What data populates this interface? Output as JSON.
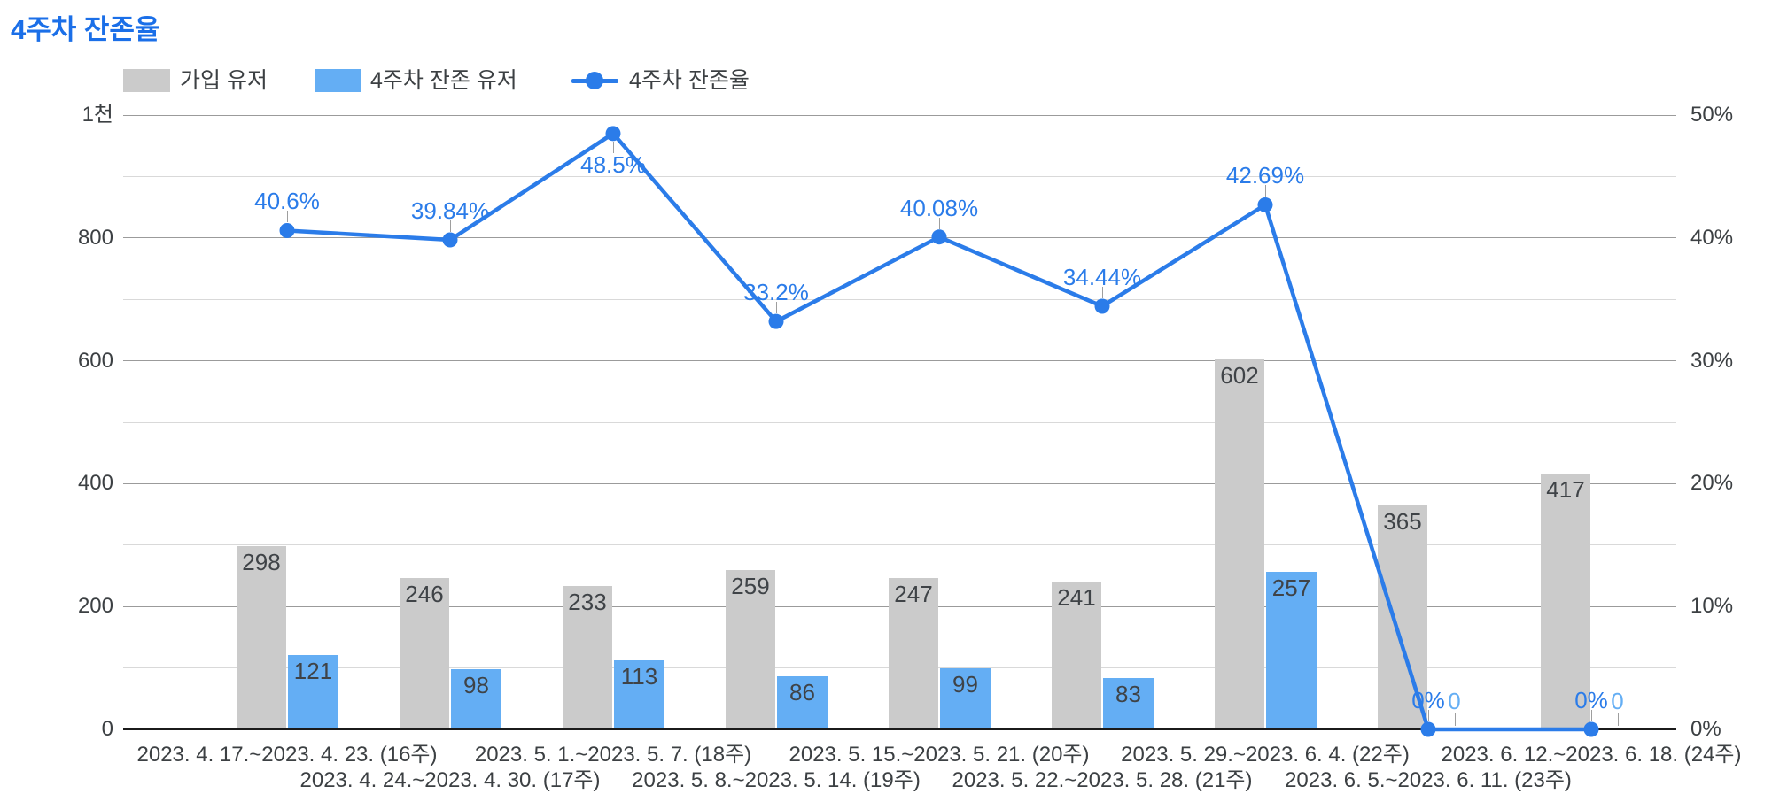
{
  "title": "4주차 잔존율",
  "colors": {
    "title": "#1b6fe8",
    "signup_bar": "#cbcbcb",
    "retained_bar": "#64aef4",
    "rate_line": "#2b7ce9",
    "bar_label": "#3f4347",
    "axis_label": "#3c4043",
    "gridline_major": "#9b9b9b",
    "gridline_minor": "#d9d9d9",
    "baseline": "#1b1b1b"
  },
  "legend": {
    "items": [
      {
        "label": "가입 유저",
        "marker": "swatch",
        "color": "#cbcbcb"
      },
      {
        "label": "4주차 잔존 유저",
        "marker": "swatch",
        "color": "#64aef4"
      },
      {
        "label": "4주차 잔존율",
        "marker": "line-dot",
        "color": "#2b7ce9"
      }
    ]
  },
  "chart_data": {
    "type": "combo-bar-line",
    "title": "4주차 잔존율",
    "categories": [
      "2023. 4. 17.~2023. 4. 23. (16주)",
      "2023. 4. 24.~2023. 4. 30. (17주)",
      "2023. 5. 1.~2023. 5. 7. (18주)",
      "2023. 5. 8.~2023. 5. 14. (19주)",
      "2023. 5. 15.~2023. 5. 21. (20주)",
      "2023. 5. 22.~2023. 5. 28. (21주)",
      "2023. 5. 29.~2023. 6. 4. (22주)",
      "2023. 6. 5.~2023. 6. 11. (23주)",
      "2023. 6. 12.~2023. 6. 18. (24주)"
    ],
    "series": [
      {
        "name": "가입 유저",
        "type": "bar",
        "axis": "left",
        "color": "#cbcbcb",
        "values": [
          298,
          246,
          233,
          259,
          247,
          241,
          602,
          365,
          417
        ],
        "value_labels": [
          "298",
          "246",
          "233",
          "259",
          "247",
          "241",
          "602",
          "365",
          "417"
        ]
      },
      {
        "name": "4주차 잔존 유저",
        "type": "bar",
        "axis": "left",
        "color": "#64aef4",
        "values": [
          121,
          98,
          113,
          86,
          99,
          83,
          257,
          0,
          0
        ],
        "value_labels": [
          "121",
          "98",
          "113",
          "86",
          "99",
          "83",
          "257",
          "0",
          "0"
        ]
      },
      {
        "name": "4주차 잔존율",
        "type": "line",
        "axis": "right",
        "color": "#2b7ce9",
        "values": [
          40.6,
          39.84,
          48.5,
          33.2,
          40.08,
          34.44,
          42.69,
          0,
          0
        ],
        "value_labels": [
          "40.6%",
          "39.84%",
          "48.5%",
          "33.2%",
          "40.08%",
          "34.44%",
          "42.69%",
          "0%",
          "0%"
        ],
        "label_positions": [
          "above",
          "above",
          "below",
          "above",
          "above",
          "above",
          "above",
          "above",
          "above"
        ]
      }
    ],
    "left_axis": {
      "min": 0,
      "max": 1000,
      "minor_step": 100,
      "ticks": [
        {
          "value": 0,
          "label": "0"
        },
        {
          "value": 200,
          "label": "200"
        },
        {
          "value": 400,
          "label": "400"
        },
        {
          "value": 600,
          "label": "600"
        },
        {
          "value": 800,
          "label": "800"
        },
        {
          "value": 1000,
          "label": "1천"
        }
      ]
    },
    "right_axis": {
      "min": 0,
      "max": 50,
      "minor_step": 5,
      "ticks": [
        {
          "value": 0,
          "label": "0%"
        },
        {
          "value": 10,
          "label": "10%"
        },
        {
          "value": 20,
          "label": "20%"
        },
        {
          "value": 30,
          "label": "30%"
        },
        {
          "value": 40,
          "label": "40%"
        },
        {
          "value": 50,
          "label": "50%"
        }
      ]
    },
    "legend_position": "top",
    "grid": true
  }
}
